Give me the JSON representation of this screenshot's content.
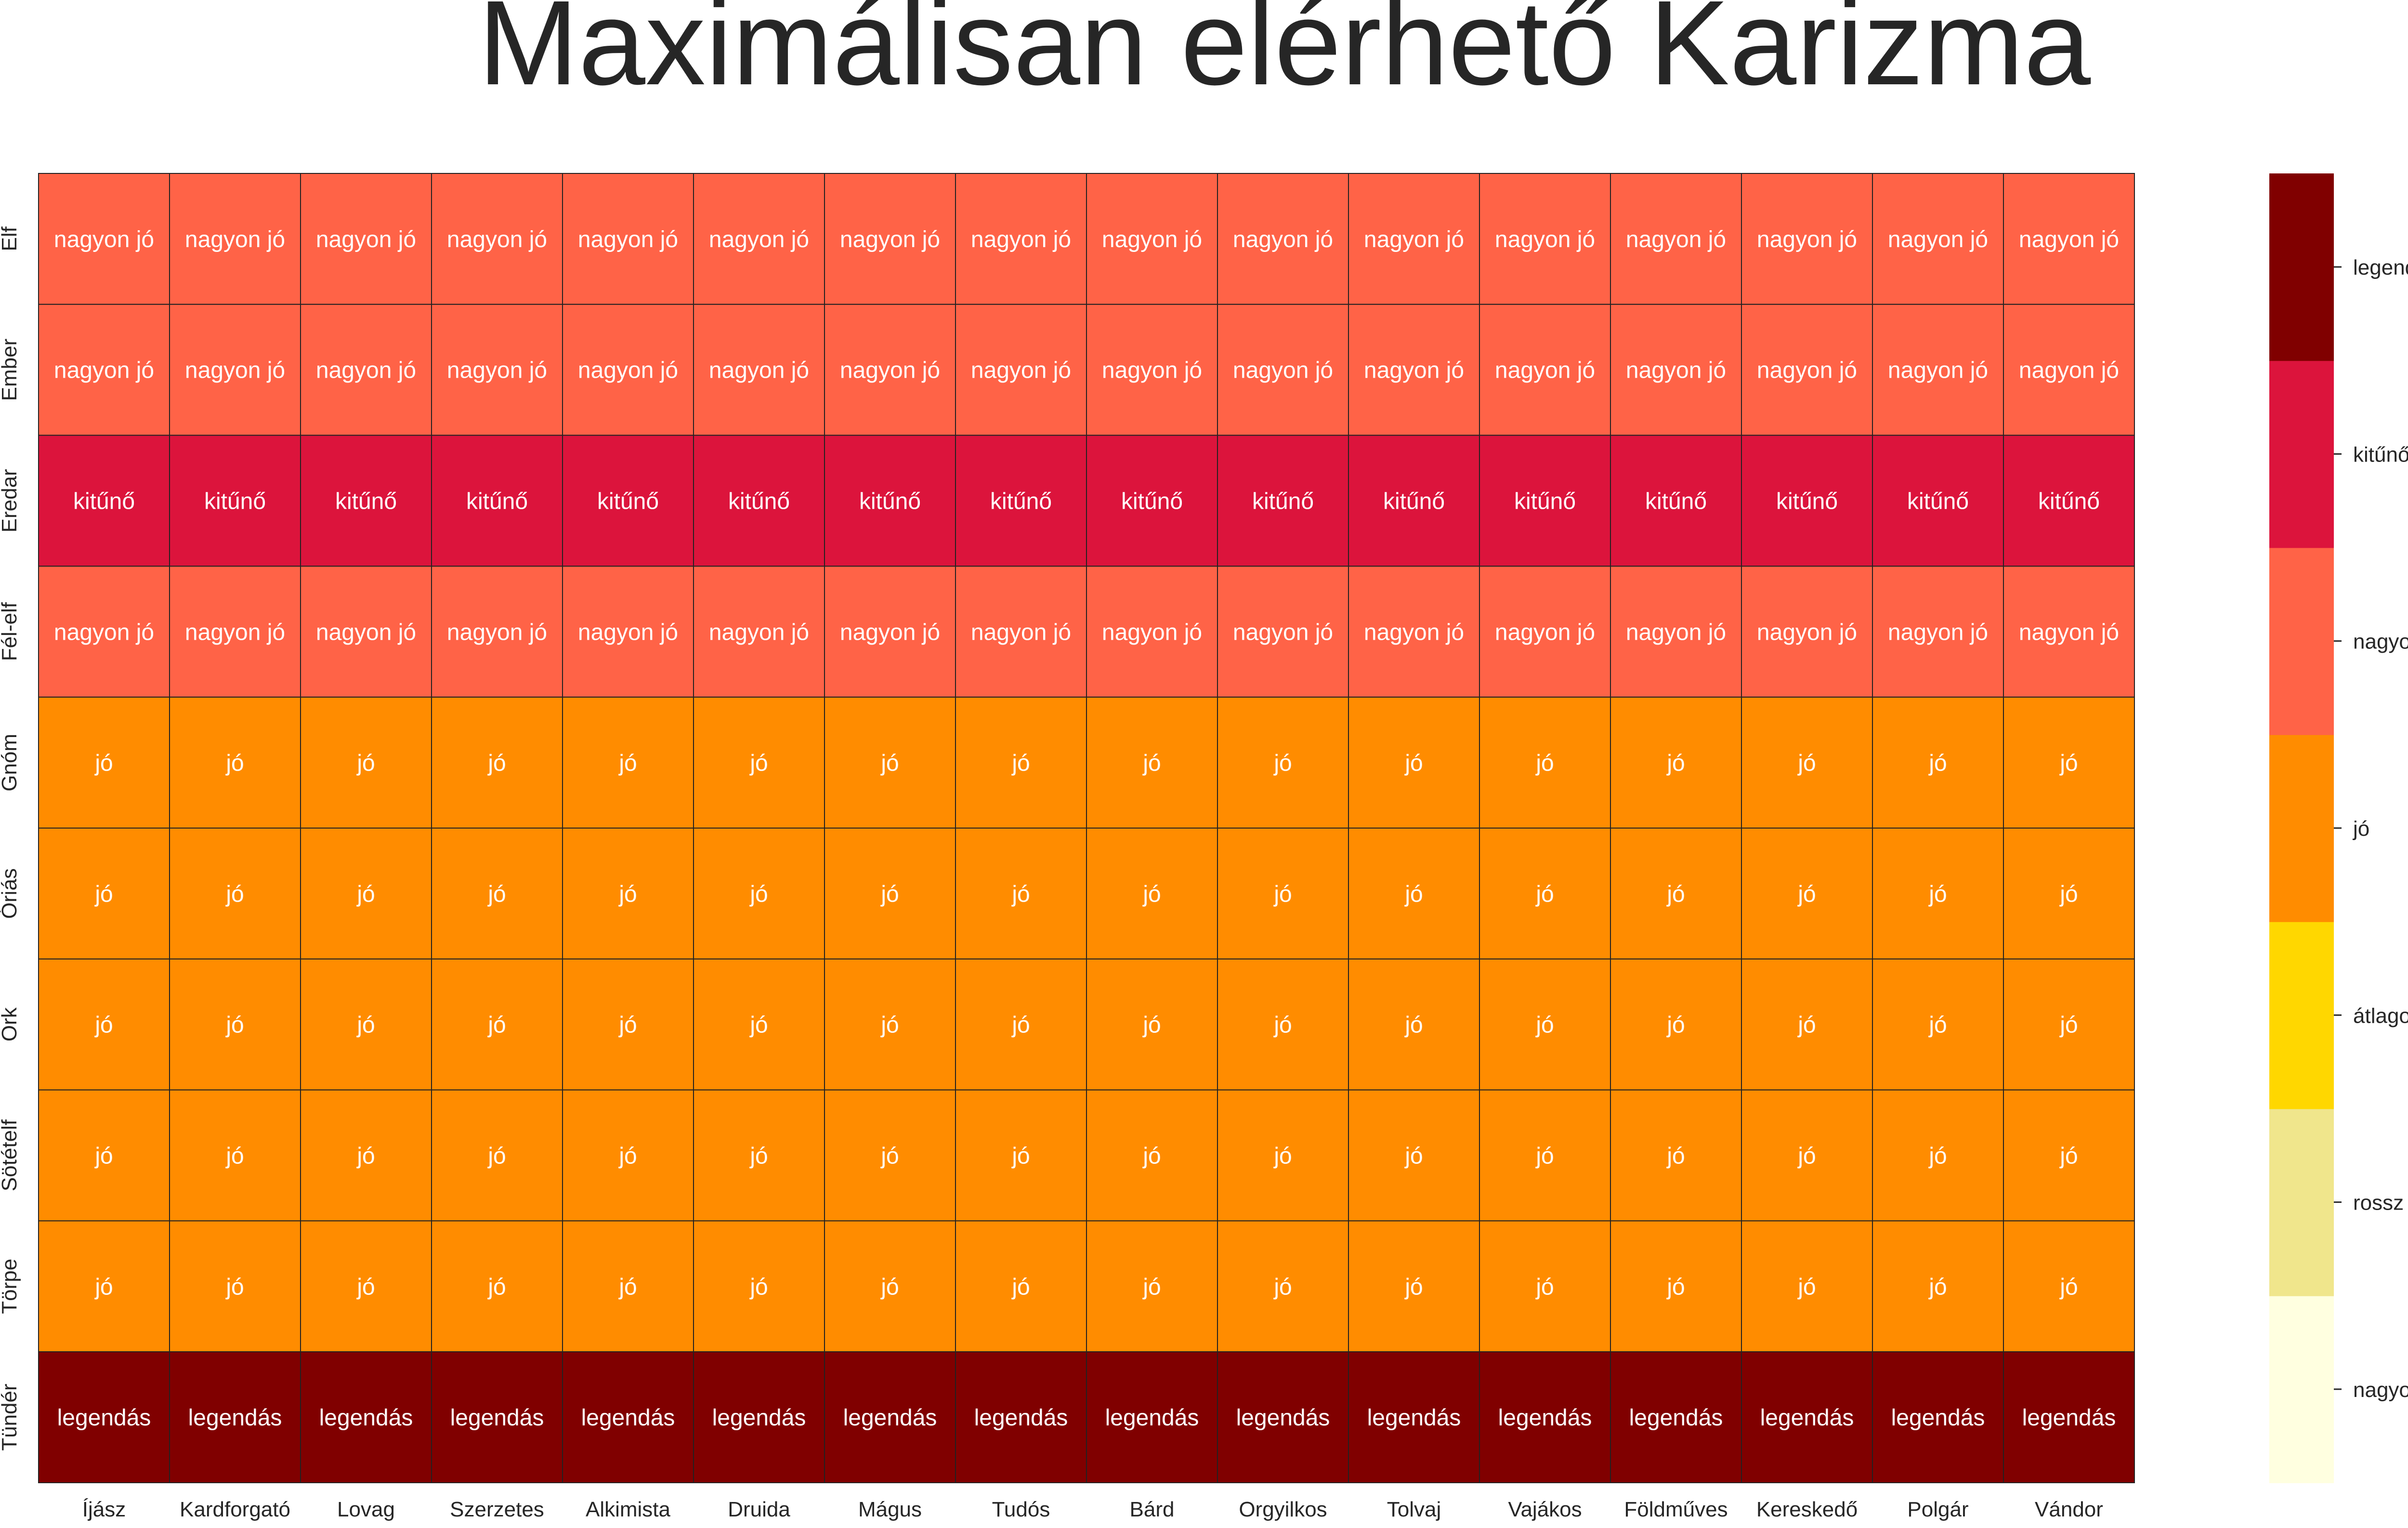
{
  "chart_data": {
    "type": "heatmap",
    "title": "Maximálisan elérhető Karizma",
    "xlabel": "",
    "ylabel": "",
    "columns": [
      "Íjász",
      "Kardforgató",
      "Lovag",
      "Szerzetes",
      "Alkimista",
      "Druida",
      "Mágus",
      "Tudós",
      "Bárd",
      "Orgyilkos",
      "Tolvaj",
      "Vajákos",
      "Földműves",
      "Kereskedő",
      "Polgár",
      "Vándor"
    ],
    "rows": [
      "Elf",
      "Ember",
      "Eredar",
      "Fél-elf",
      "Gnóm",
      "Óriás",
      "Ork",
      "Sötételf",
      "Törpe",
      "Tündér"
    ],
    "row_values": [
      "nagyon jó",
      "nagyon jó",
      "kitűnő",
      "nagyon jó",
      "jó",
      "jó",
      "jó",
      "jó",
      "jó",
      "legendás"
    ],
    "scale": [
      "nagyon rossz",
      "rossz",
      "átlagos",
      "jó",
      "nagyon jó",
      "kitűnő",
      "legendás"
    ],
    "colors": {
      "nagyon rossz": "#ffffe0",
      "rossz": "#f0e68c",
      "átlagos": "#ffd700",
      "jó": "#ff8c00",
      "nagyon jó": "#ff6347",
      "kitűnő": "#dc143c",
      "legendás": "#800000"
    },
    "text_color": "#ffffff",
    "legend_position": "right",
    "grid": true
  }
}
